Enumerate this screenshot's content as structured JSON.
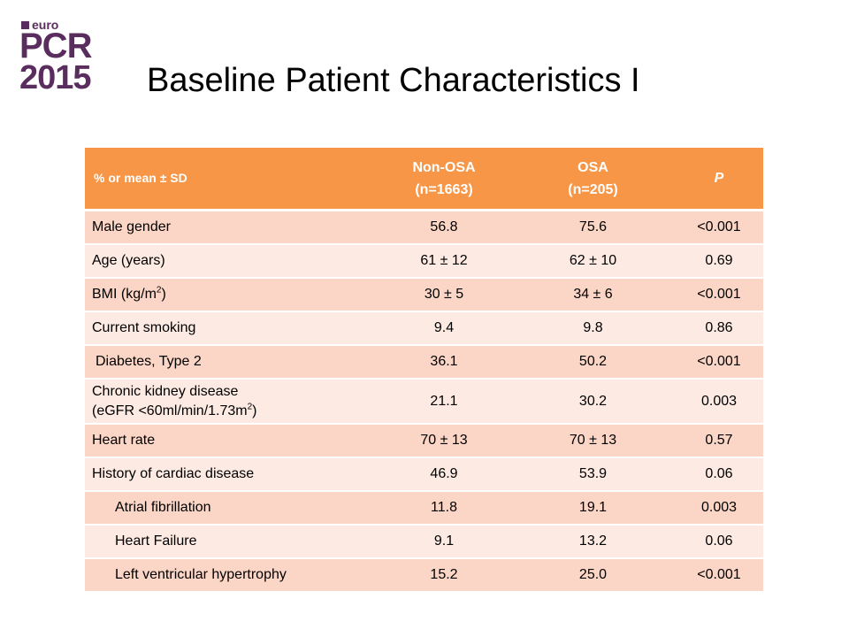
{
  "logo": {
    "euro": "euro",
    "pcr": "PCR",
    "year": "2015"
  },
  "title": "Baseline Patient Characteristics I",
  "table": {
    "headers": {
      "col0": "% or mean ± SD",
      "col1_line1": "Non-OSA",
      "col1_line2": "(n=1663)",
      "col2_line1": "OSA",
      "col2_line2": "(n=205)",
      "col3": "P"
    },
    "rows": [
      {
        "label": "Male gender",
        "non_osa": "56.8",
        "osa": "75.6",
        "p": "<0.001"
      },
      {
        "label": "Age (years)",
        "non_osa": "61 ± 12",
        "osa": "62 ± 10",
        "p": "0.69"
      },
      {
        "label_pre": "BMI (kg/m",
        "label_sup": "2",
        "label_post": ")",
        "non_osa": "30 ± 5",
        "osa": "34 ± 6",
        "p": "<0.001"
      },
      {
        "label": "Current smoking",
        "non_osa": "9.4",
        "osa": "9.8",
        "p": "0.86"
      },
      {
        "label": "Diabetes, Type 2",
        "non_osa": "36.1",
        "osa": "50.2",
        "p": "<0.001"
      },
      {
        "label_line1": "Chronic kidney disease",
        "label_line2_pre": "(eGFR <60ml/min/1.73m",
        "label_line2_sup": "2",
        "label_line2_post": ")",
        "non_osa": "21.1",
        "osa": "30.2",
        "p": "0.003"
      },
      {
        "label": "Heart rate",
        "non_osa": "70 ± 13",
        "osa": "70 ± 13",
        "p": "0.57"
      },
      {
        "label": "History of cardiac disease",
        "non_osa": "46.9",
        "osa": "53.9",
        "p": "0.06"
      },
      {
        "label": "Atrial fibrillation",
        "non_osa": "11.8",
        "osa": "19.1",
        "p": "0.003"
      },
      {
        "label": "Heart Failure",
        "non_osa": "9.1",
        "osa": "13.2",
        "p": "0.06"
      },
      {
        "label": "Left ventricular hypertrophy",
        "non_osa": "15.2",
        "osa": "25.0",
        "p": "<0.001"
      }
    ]
  },
  "colors": {
    "header_bg": "#f79646",
    "row_dark": "#fbd5c5",
    "row_light": "#fdeae3",
    "logo": "#5a2d5f"
  }
}
